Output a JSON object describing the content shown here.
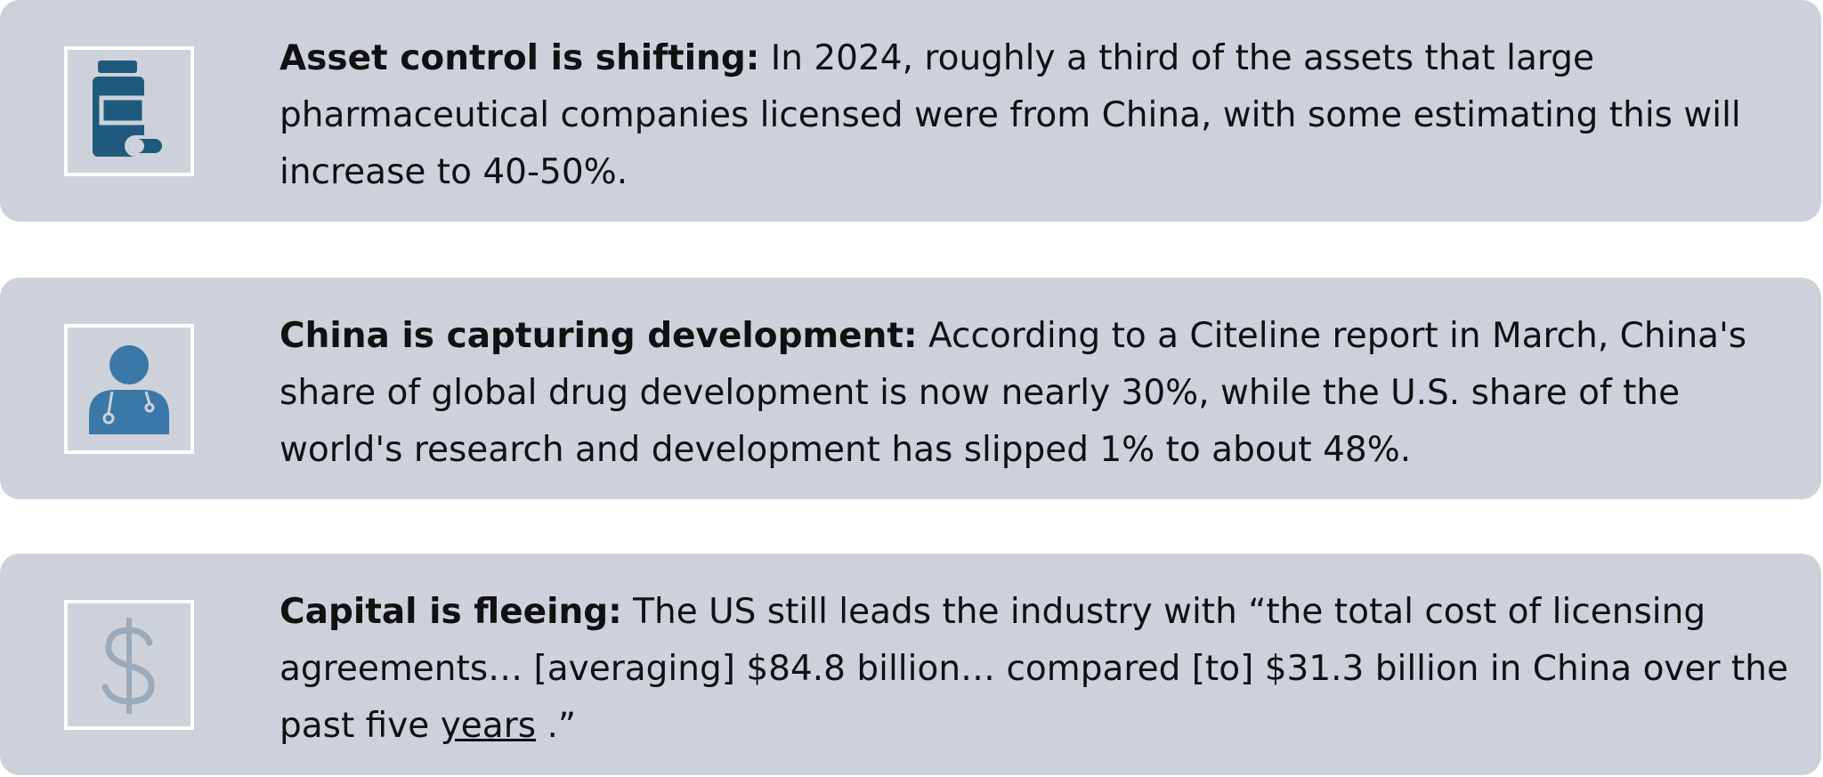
{
  "cards": [
    {
      "lead": "Asset control is shifting:",
      "body": "In 2024, roughly a third of the assets that large pharmaceutical companies licensed were from China, with some estimating this will increase to 40-50%."
    },
    {
      "lead": "China is capturing development:",
      "body": "According to a Citeline report in March, China's share of global drug development is now nearly 30%, while the U.S. share of the world's research and development has slipped 1% to about 48%."
    },
    {
      "lead": "Capital is fleeing:",
      "body": "The US still leads the industry with “the total cost of licensing agreements… [averaging] $84.8 billion… compared [to] $31.3 billion in China over the past five",
      "link": "years",
      "body_end": ".”"
    }
  ]
}
